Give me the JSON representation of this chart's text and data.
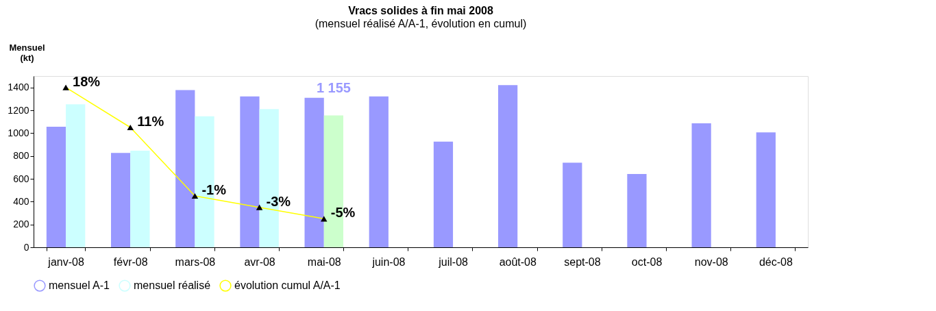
{
  "chart_data": {
    "type": "bar",
    "title": "Vracs solides à fin mai 2008",
    "subtitle": "(mensuel réalisé A/A-1, évolution en cumul)",
    "ylabel": "Mensuel (kt)",
    "categories": [
      "janv-08",
      "févr-08",
      "mars-08",
      "avr-08",
      "mai-08",
      "juin-08",
      "juil-08",
      "août-08",
      "sept-08",
      "oct-08",
      "nov-08",
      "déc-08"
    ],
    "series": [
      {
        "name": "mensuel A-1",
        "color": "#9999ff",
        "values": [
          1056,
          827,
          1377,
          1321,
          1309,
          1321,
          926,
          1420,
          741,
          642,
          1086,
          1006
        ]
      },
      {
        "name": "mensuel réalisé",
        "color": "#ccffff",
        "colors": [
          "#ccffff",
          "#ccffff",
          "#ccffff",
          "#ccffff",
          "#ccffcc",
          null,
          null,
          null,
          null,
          null,
          null,
          null
        ],
        "values": [
          1253,
          846,
          1148,
          1210,
          1155,
          null,
          null,
          null,
          null,
          null,
          null,
          null
        ],
        "value_labels": [
          null,
          null,
          null,
          null,
          "1 155",
          null,
          null,
          null,
          null,
          null,
          null,
          null
        ]
      },
      {
        "name": "évolution cumul A/A-1",
        "type": "line",
        "axis": "y2",
        "color": "#ffff00",
        "marker": "triangle",
        "values": [
          18,
          11,
          -1,
          -3,
          -5,
          null,
          null,
          null,
          null,
          null,
          null,
          null
        ],
        "value_labels": [
          "18%",
          "11%",
          "-1%",
          "-3%",
          "-5%",
          null,
          null,
          null,
          null,
          null,
          null,
          null
        ]
      }
    ],
    "ylim": [
      0,
      1500
    ],
    "yticks": [
      0,
      200,
      400,
      600,
      800,
      1000,
      1200,
      1400
    ],
    "y2lim": [
      -10,
      20
    ],
    "grid": false,
    "legend": "bottom"
  }
}
